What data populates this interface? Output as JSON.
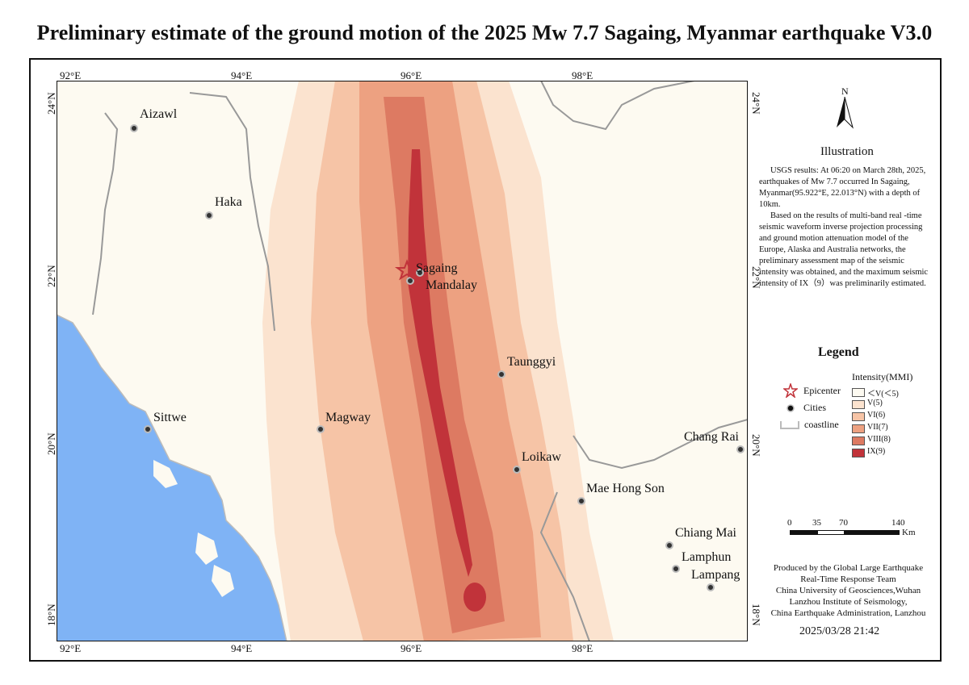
{
  "title": "Preliminary estimate of the ground motion of the 2025 Mw 7.7 Sagaing, Myanmar earthquake V3.0",
  "axes": {
    "top": [
      "92°E",
      "94°E",
      "96°E",
      "98°E"
    ],
    "bottom": [
      "92°E",
      "94°E",
      "96°E",
      "98°E"
    ],
    "left": [
      "24°N",
      "22°N",
      "20°N",
      "18°N"
    ],
    "right": [
      "24°N",
      "22°N",
      "20°N",
      "18°N"
    ]
  },
  "cities": [
    {
      "name": "Aizawl"
    },
    {
      "name": "Haka"
    },
    {
      "name": "Sagaing"
    },
    {
      "name": "Mandalay"
    },
    {
      "name": "Taunggyi"
    },
    {
      "name": "Sittwe"
    },
    {
      "name": "Magway"
    },
    {
      "name": "Loikaw"
    },
    {
      "name": "Mae Hong Son"
    },
    {
      "name": "Chang Rai"
    },
    {
      "name": "Chiang Mai"
    },
    {
      "name": "Lamphun"
    },
    {
      "name": "Lampang"
    }
  ],
  "north_arrow": {
    "label": "N",
    "icon": "north-arrow-icon"
  },
  "illustration": {
    "title": "Illustration",
    "paragraph1": "USGS results: At 06:20 on March 28th, 2025, earthquakes of Mw 7.7 occurred In Sagaing, Myanmar(95.922°E, 22.013°N) with a depth of 10km.",
    "paragraph2": "Based on the results of multi-band real -time seismic waveform inverse projection processing and ground motion attenuation model of the Europe, Alaska and Australia networks, the preliminary assessment map of the seismic intensity was obtained, and the maximum seismic intensity of IX（9）was preliminarily estimated."
  },
  "legend": {
    "title": "Legend",
    "epicenter": "Epicenter",
    "cities": "Cities",
    "coastline": "coastline",
    "intensity_title": "Intensity(MMI)",
    "levels": [
      {
        "label": "＜V(＜5)",
        "color": "#fdfaf1"
      },
      {
        "label": "V(5)",
        "color": "#fbe3cf"
      },
      {
        "label": "VI(6)",
        "color": "#f6c4a6"
      },
      {
        "label": "VII(7)",
        "color": "#eda181"
      },
      {
        "label": "VIII(8)",
        "color": "#dd7a62"
      },
      {
        "label": "IX(9)",
        "color": "#c1333a"
      }
    ]
  },
  "scale": {
    "ticks": [
      "0",
      "35",
      "70",
      "140"
    ],
    "unit": "Km"
  },
  "credits": {
    "line1": "Produced by the Global Large Earthquake",
    "line2": "Real-Time Response Team",
    "line3": "China University of Geosciences,Wuhan",
    "line4": "Lanzhou Institute of Seismology,",
    "line5": "China Earthquake Administration, Lanzhou"
  },
  "datetime": "2025/03/28 21:42",
  "colors": {
    "sea": "#7fb3f5",
    "land": "#fdfaf1",
    "border": "#999999",
    "epicenter": "#c1333a"
  }
}
